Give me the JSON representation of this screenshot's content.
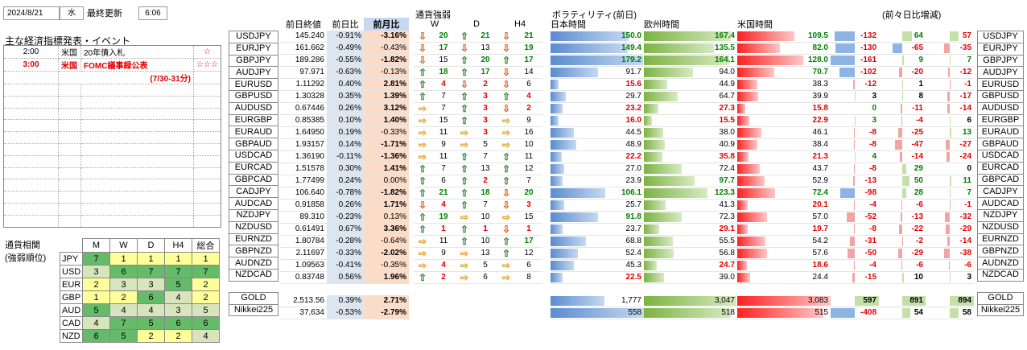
{
  "header": {
    "date": "2024/8/21",
    "weekday": "水",
    "updated_label": "最終更新",
    "time": "6:06"
  },
  "events": {
    "title": "主な経済指標発表・イベント",
    "rows": [
      {
        "time": "2:00",
        "country": "米国",
        "event": "20年債入札",
        "stars": "☆",
        "highlight": false
      },
      {
        "time": "3:00",
        "country": "米国",
        "event": "FOMC議事録公表",
        "stars": "☆☆☆",
        "highlight": true
      },
      {
        "time": "",
        "country": "",
        "event": "(7/30-31分)",
        "stars": "",
        "highlight": true
      }
    ]
  },
  "price_headers": {
    "close": "前日終値",
    "day": "前日比",
    "month": "前月比"
  },
  "strength_headers": {
    "title": "通貨強弱",
    "w": "W",
    "d": "D",
    "h4": "H4"
  },
  "vol_headers": {
    "title": "ボラティリティ(前日)",
    "jp": "日本時間",
    "eu": "欧州時間",
    "us": "米国時間",
    "diff": "(前々日比増減)"
  },
  "colors": {
    "blue_bar": "#8eb4e3",
    "green_bar": "#92d050",
    "red_bar": "#ff3b3b",
    "pct_bg": "#dce6f1",
    "month_bg": "#fbdcc8"
  },
  "pairs": [
    {
      "p": "USDJPY",
      "c": "145.240",
      "d": "-0.91%",
      "m": "-3.16%",
      "mb": true,
      "wa": "down",
      "w": "20",
      "da": "up",
      "dn": "21",
      "ha": "down",
      "h": "21",
      "jp": "150.0",
      "jc": "grn",
      "ju": 1,
      "eu": "167.4",
      "ec": "grn",
      "eb": 1,
      "us": "109.5",
      "uc": "grn",
      "ub": 1,
      "a": "-132",
      "ac": "red",
      "b": "64",
      "bc": "grn",
      "c2": "57",
      "cc": "red"
    },
    {
      "p": "EURJPY",
      "c": "161.662",
      "d": "-0.49%",
      "m": "-0.43%",
      "mb": false,
      "wa": "down",
      "w": "17",
      "da": "down",
      "dn": "13",
      "ha": "down",
      "h": "19",
      "jp": "149.4",
      "jc": "grn",
      "ju": 1,
      "eu": "135.5",
      "ec": "grn",
      "eb": 1,
      "us": "82.0",
      "uc": "grn",
      "ub": 1,
      "a": "-130",
      "ac": "red",
      "b": "-65",
      "bc": "red",
      "c2": "-35",
      "cc": "red"
    },
    {
      "p": "GBPJPY",
      "c": "189.286",
      "d": "-0.55%",
      "m": "-1.82%",
      "mb": true,
      "wa": "down",
      "w": "15",
      "da": "up",
      "dn": "20",
      "ha": "up",
      "h": "17",
      "jp": "179.2",
      "jc": "grn",
      "ju": 1,
      "eu": "164.1",
      "ec": "grn",
      "eb": 1,
      "us": "128.0",
      "uc": "grn",
      "ub": 1,
      "a": "-161",
      "ac": "red",
      "b": "9",
      "bc": "grn",
      "c2": "7",
      "cc": "grn"
    },
    {
      "p": "AUDJPY",
      "c": "97.971",
      "d": "-0.63%",
      "m": "-0.13%",
      "mb": false,
      "wa": "up",
      "w": "18",
      "da": "up",
      "dn": "17",
      "ha": "down",
      "h": "14",
      "jp": "91.7",
      "jc": "blk",
      "ju": 0,
      "eu": "94.0",
      "ec": "blk",
      "eb": 0,
      "us": "70.7",
      "uc": "grn",
      "ub": 1,
      "a": "-102",
      "ac": "red",
      "b": "-20",
      "bc": "red",
      "c2": "-12",
      "cc": "red"
    },
    {
      "p": "EURUSD",
      "c": "1.11292",
      "d": "0.40%",
      "m": "2.81%",
      "mb": true,
      "wa": "up",
      "w": "4",
      "da": "down",
      "dn": "2",
      "ha": "down",
      "h": "6",
      "jp": "15.6",
      "jc": "red",
      "ju": 1,
      "eu": "44.9",
      "ec": "blk",
      "eb": 0,
      "us": "38.3",
      "uc": "blk",
      "ub": 0,
      "a": "-12",
      "ac": "red",
      "b": "1",
      "bc": "blk",
      "c2": "-1",
      "cc": "red"
    },
    {
      "p": "GBPUSD",
      "c": "1.30328",
      "d": "0.35%",
      "m": "1.39%",
      "mb": true,
      "wa": "up",
      "w": "7",
      "da": "up",
      "dn": "3",
      "ha": "up",
      "h": "4",
      "jp": "29.7",
      "jc": "blk",
      "ju": 0,
      "eu": "64.7",
      "ec": "blk",
      "eb": 0,
      "us": "39.9",
      "uc": "blk",
      "ub": 0,
      "a": "3",
      "ac": "blk",
      "b": "8",
      "bc": "blk",
      "c2": "-17",
      "cc": "red"
    },
    {
      "p": "AUDUSD",
      "c": "0.67446",
      "d": "0.26%",
      "m": "3.12%",
      "mb": true,
      "wa": "right",
      "w": "7",
      "da": "up",
      "dn": "3",
      "ha": "down",
      "h": "2",
      "jp": "23.2",
      "jc": "red",
      "ju": 1,
      "eu": "27.3",
      "ec": "red",
      "eb": 1,
      "us": "15.8",
      "uc": "red",
      "ub": 1,
      "a": "0",
      "ac": "grn",
      "b": "-11",
      "bc": "red",
      "c2": "-14",
      "cc": "red"
    },
    {
      "p": "EURGBP",
      "c": "0.85385",
      "d": "0.10%",
      "m": "1.40%",
      "mb": true,
      "wa": "right",
      "w": "15",
      "da": "up",
      "dn": "3",
      "ha": "right",
      "h": "9",
      "jp": "16.0",
      "jc": "red",
      "ju": 1,
      "eu": "15.5",
      "ec": "red",
      "eb": 1,
      "us": "22.9",
      "uc": "red",
      "ub": 1,
      "a": "3",
      "ac": "grn",
      "b": "-4",
      "bc": "red",
      "c2": "6",
      "cc": "blk"
    },
    {
      "p": "EURAUD",
      "c": "1.64950",
      "d": "0.19%",
      "m": "-0.33%",
      "mb": false,
      "wa": "right",
      "w": "11",
      "da": "right",
      "dn": "3",
      "ha": "right",
      "h": "16",
      "jp": "44.5",
      "jc": "blk",
      "ju": 0,
      "eu": "38.0",
      "ec": "blk",
      "eb": 0,
      "us": "46.1",
      "uc": "blk",
      "ub": 0,
      "a": "-8",
      "ac": "red",
      "b": "-25",
      "bc": "red",
      "c2": "13",
      "cc": "grn"
    },
    {
      "p": "GBPAUD",
      "c": "1.93157",
      "d": "0.14%",
      "m": "-1.71%",
      "mb": true,
      "wa": "right",
      "w": "9",
      "da": "right",
      "dn": "5",
      "ha": "right",
      "h": "10",
      "jp": "48.9",
      "jc": "blk",
      "ju": 0,
      "eu": "40.9",
      "ec": "blk",
      "eb": 0,
      "us": "38.4",
      "uc": "blk",
      "ub": 0,
      "a": "-8",
      "ac": "red",
      "b": "-47",
      "bc": "red",
      "c2": "-27",
      "cc": "red"
    },
    {
      "p": "USDCAD",
      "c": "1.36190",
      "d": "-0.11%",
      "m": "-1.36%",
      "mb": true,
      "wa": "right",
      "w": "11",
      "da": "up",
      "dn": "7",
      "ha": "up",
      "h": "11",
      "jp": "22.2",
      "jc": "red",
      "ju": 1,
      "eu": "35.8",
      "ec": "red",
      "eb": 1,
      "us": "21.3",
      "uc": "red",
      "ub": 1,
      "a": "4",
      "ac": "grn",
      "b": "-14",
      "bc": "red",
      "c2": "-24",
      "cc": "red"
    },
    {
      "p": "EURCAD",
      "c": "1.51578",
      "d": "0.30%",
      "m": "1.41%",
      "mb": true,
      "wa": "up",
      "w": "7",
      "da": "up",
      "dn": "13",
      "ha": "up",
      "h": "12",
      "jp": "27.0",
      "jc": "blk",
      "ju": 0,
      "eu": "72.4",
      "ec": "blk",
      "eb": 0,
      "us": "43.7",
      "uc": "blk",
      "ub": 0,
      "a": "-8",
      "ac": "red",
      "b": "29",
      "bc": "grn",
      "c2": "0",
      "cc": "blk"
    },
    {
      "p": "GBPCAD",
      "c": "1.77499",
      "d": "0.24%",
      "m": "0.00%",
      "mb": false,
      "wa": "up",
      "w": "6",
      "da": "up",
      "dn": "2",
      "ha": "up",
      "h": "7",
      "jp": "23.9",
      "jc": "blk",
      "ju": 0,
      "eu": "97.7",
      "ec": "grn",
      "eb": 1,
      "us": "52.9",
      "uc": "blk",
      "ub": 0,
      "a": "-13",
      "ac": "red",
      "b": "50",
      "bc": "grn",
      "c2": "11",
      "cc": "grn"
    },
    {
      "p": "CADJPY",
      "c": "106.640",
      "d": "-0.78%",
      "m": "-1.82%",
      "mb": true,
      "wa": "up",
      "w": "21",
      "da": "up",
      "dn": "18",
      "ha": "down",
      "h": "20",
      "jp": "106.1",
      "jc": "grn",
      "ju": 1,
      "eu": "123.3",
      "ec": "grn",
      "eb": 1,
      "us": "72.4",
      "uc": "grn",
      "ub": 1,
      "a": "-98",
      "ac": "red",
      "b": "28",
      "bc": "grn",
      "c2": "7",
      "cc": "grn"
    },
    {
      "p": "AUDCAD",
      "c": "0.91858",
      "d": "0.26%",
      "m": "1.71%",
      "mb": true,
      "wa": "down",
      "w": "4",
      "da": "up",
      "dn": "7",
      "ha": "down",
      "h": "3",
      "jp": "25.7",
      "jc": "blk",
      "ju": 0,
      "eu": "41.3",
      "ec": "blk",
      "eb": 0,
      "us": "20.1",
      "uc": "red",
      "ub": 1,
      "a": "-4",
      "ac": "red",
      "b": "-6",
      "bc": "red",
      "c2": "-1",
      "cc": "red"
    },
    {
      "p": "NZDJPY",
      "c": "89.310",
      "d": "-0.23%",
      "m": "0.13%",
      "mb": false,
      "wa": "up",
      "w": "19",
      "da": "right",
      "dn": "10",
      "ha": "right",
      "h": "15",
      "jp": "91.8",
      "jc": "grn",
      "ju": 1,
      "eu": "72.3",
      "ec": "blk",
      "eb": 0,
      "us": "57.0",
      "uc": "blk",
      "ub": 0,
      "a": "-52",
      "ac": "red",
      "b": "-13",
      "bc": "red",
      "c2": "-32",
      "cc": "red"
    },
    {
      "p": "NZDUSD",
      "c": "0.61491",
      "d": "0.67%",
      "m": "3.36%",
      "mb": true,
      "wa": "up",
      "w": "1",
      "da": "up",
      "dn": "1",
      "ha": "down",
      "h": "1",
      "jp": "23.7",
      "jc": "blk",
      "ju": 0,
      "eu": "29.1",
      "ec": "red",
      "eb": 1,
      "us": "19.7",
      "uc": "red",
      "ub": 1,
      "a": "-8",
      "ac": "red",
      "b": "-22",
      "bc": "red",
      "c2": "-29",
      "cc": "red"
    },
    {
      "p": "EURNZD",
      "c": "1.80784",
      "d": "-0.28%",
      "m": "-0.64%",
      "mb": false,
      "wa": "right",
      "w": "11",
      "da": "up",
      "dn": "10",
      "ha": "up",
      "h": "17",
      "jp": "68.8",
      "jc": "blk",
      "ju": 0,
      "eu": "55.5",
      "ec": "blk",
      "eb": 0,
      "us": "54.2",
      "uc": "blk",
      "ub": 0,
      "a": "-31",
      "ac": "red",
      "b": "-2",
      "bc": "red",
      "c2": "-14",
      "cc": "red"
    },
    {
      "p": "GBPNZD",
      "c": "2.11697",
      "d": "-0.33%",
      "m": "-2.02%",
      "mb": true,
      "wa": "right",
      "w": "9",
      "da": "right",
      "dn": "13",
      "ha": "up",
      "h": "12",
      "jp": "52.4",
      "jc": "blk",
      "ju": 0,
      "eu": "56.8",
      "ec": "blk",
      "eb": 0,
      "us": "57.6",
      "uc": "blk",
      "ub": 0,
      "a": "-50",
      "ac": "red",
      "b": "-29",
      "bc": "red",
      "c2": "-38",
      "cc": "red"
    },
    {
      "p": "AUDNZD",
      "c": "1.09563",
      "d": "-0.41%",
      "m": "-0.35%",
      "mb": false,
      "wa": "right",
      "w": "4",
      "da": "right",
      "dn": "5",
      "ha": "right",
      "h": "6",
      "jp": "45.3",
      "jc": "blk",
      "ju": 0,
      "eu": "24.7",
      "ec": "red",
      "eb": 1,
      "us": "18.6",
      "uc": "red",
      "ub": 1,
      "a": "-4",
      "ac": "red",
      "b": "-6",
      "bc": "red",
      "c2": "-6",
      "cc": "red"
    },
    {
      "p": "NZDCAD",
      "c": "0.83748",
      "d": "0.56%",
      "m": "1.96%",
      "mb": true,
      "wa": "up",
      "w": "2",
      "da": "right",
      "dn": "6",
      "ha": "right",
      "h": "8",
      "jp": "22.5",
      "jc": "red",
      "ju": 1,
      "eu": "39.0",
      "ec": "blk",
      "eb": 0,
      "us": "24.4",
      "uc": "blk",
      "ub": 0,
      "a": "-15",
      "ac": "red",
      "b": "10",
      "bc": "blk",
      "c2": "3",
      "cc": "blk"
    }
  ],
  "extras": [
    {
      "p": "GOLD",
      "c": "2,513.56",
      "d": "0.39%",
      "m": "2.71%",
      "jp": "1,777",
      "eu": "3,047",
      "us": "3,083",
      "a": "597",
      "ac": "blk",
      "b": "891",
      "bc": "blk",
      "c2": "894",
      "cc": "blk"
    },
    {
      "p": "Nikkei225",
      "c": "37,634",
      "d": "-0.53%",
      "m": "-2.79%",
      "jp": "558",
      "eu": "518",
      "us": "515",
      "a": "-408",
      "ac": "red",
      "b": "54",
      "bc": "blk",
      "c2": "58",
      "cc": "blk"
    }
  ],
  "corr": {
    "title": "通貨相関",
    "subtitle": "(強弱順位)",
    "cols": [
      "M",
      "W",
      "D",
      "H4",
      "総合"
    ],
    "rows": [
      {
        "c": "JPY",
        "v": [
          "7",
          "1",
          "1",
          "1",
          "1"
        ]
      },
      {
        "c": "USD",
        "v": [
          "3",
          "6",
          "7",
          "7",
          "7"
        ]
      },
      {
        "c": "EUR",
        "v": [
          "2",
          "3",
          "3",
          "5",
          "2"
        ]
      },
      {
        "c": "GBP",
        "v": [
          "1",
          "2",
          "6",
          "4",
          "2"
        ]
      },
      {
        "c": "AUD",
        "v": [
          "5",
          "4",
          "4",
          "3",
          "5"
        ]
      },
      {
        "c": "CAD",
        "v": [
          "4",
          "7",
          "5",
          "6",
          "6"
        ]
      },
      {
        "c": "NZD",
        "v": [
          "6",
          "5",
          "2",
          "2",
          "4"
        ]
      }
    ]
  }
}
